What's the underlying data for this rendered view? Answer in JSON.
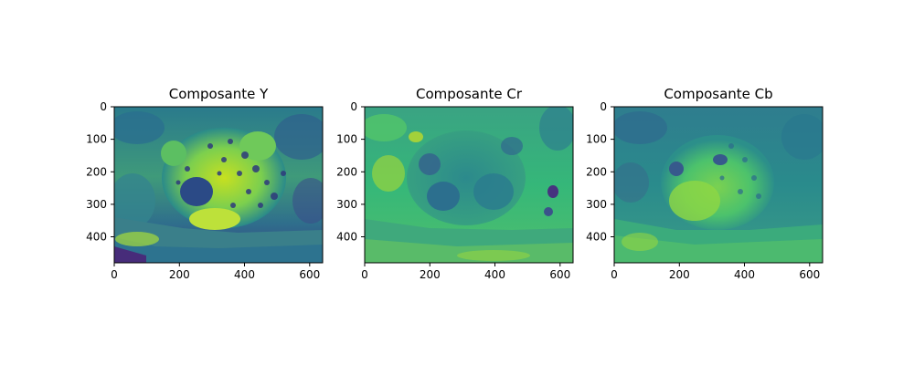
{
  "figure": {
    "panels": [
      {
        "title": "Composante Y",
        "x_ticks": [
          "0",
          "200",
          "400",
          "600"
        ],
        "y_ticks": [
          "0",
          "100",
          "200",
          "300",
          "400"
        ],
        "colormap": "viridis"
      },
      {
        "title": "Composante Cr",
        "x_ticks": [
          "0",
          "200",
          "400",
          "600"
        ],
        "y_ticks": [
          "0",
          "100",
          "200",
          "300",
          "400"
        ],
        "colormap": "viridis"
      },
      {
        "title": "Composante Cb",
        "x_ticks": [
          "0",
          "200",
          "400",
          "600"
        ],
        "y_ticks": [
          "0",
          "100",
          "200",
          "300",
          "400"
        ],
        "colormap": "viridis"
      }
    ],
    "colors": {
      "viridis_dark": "#440154",
      "viridis_blue": "#3b528b",
      "viridis_teal": "#21918c",
      "viridis_green": "#5ec962",
      "viridis_yellow": "#fde725"
    }
  }
}
